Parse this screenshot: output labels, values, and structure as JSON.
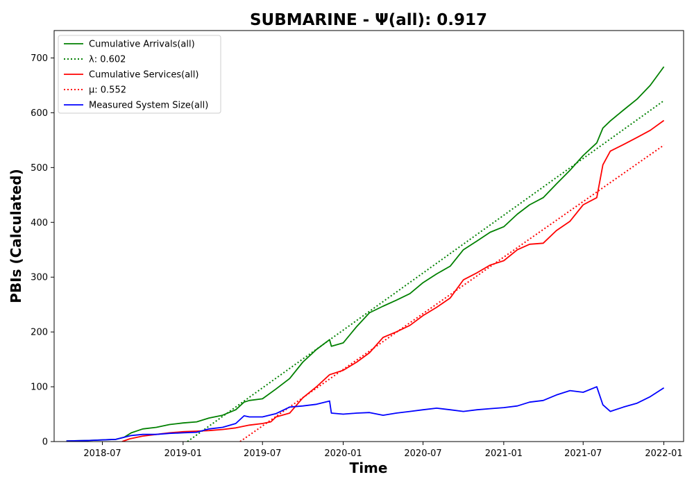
{
  "chart_data": {
    "type": "line",
    "title": "SUBMARINE -  Ψ(all): 0.917",
    "xlabel": "Time",
    "ylabel": "PBIs (Calculated)",
    "xlim": [
      "2018-03-13",
      "2022-02-15"
    ],
    "ylim": [
      0,
      750
    ],
    "x_ticks": [
      "2018-07-01",
      "2019-01-01",
      "2019-07-01",
      "2020-01-01",
      "2020-07-01",
      "2021-01-01",
      "2021-07-01",
      "2022-01-01"
    ],
    "x_tick_labels": [
      "2018-07",
      "2019-01",
      "2019-07",
      "2020-01",
      "2020-07",
      "2021-01",
      "2021-07",
      "2022-01"
    ],
    "y_ticks": [
      0,
      100,
      200,
      300,
      400,
      500,
      600,
      700
    ],
    "grid": false,
    "legend_position": "upper-left",
    "series": [
      {
        "name": "Cumulative Arrivals(all)",
        "color": "#008000",
        "style": "solid",
        "points": [
          [
            "2018-04-10",
            1
          ],
          [
            "2018-06-01",
            2
          ],
          [
            "2018-08-01",
            4
          ],
          [
            "2018-08-20",
            8
          ],
          [
            "2018-09-05",
            16
          ],
          [
            "2018-10-01",
            23
          ],
          [
            "2018-11-01",
            26
          ],
          [
            "2018-12-01",
            31
          ],
          [
            "2019-01-01",
            34
          ],
          [
            "2019-02-01",
            36
          ],
          [
            "2019-03-01",
            43
          ],
          [
            "2019-04-01",
            48
          ],
          [
            "2019-05-01",
            58
          ],
          [
            "2019-05-20",
            72
          ],
          [
            "2019-06-01",
            75
          ],
          [
            "2019-07-01",
            78
          ],
          [
            "2019-08-01",
            96
          ],
          [
            "2019-09-01",
            115
          ],
          [
            "2019-10-01",
            145
          ],
          [
            "2019-11-01",
            168
          ],
          [
            "2019-12-01",
            186
          ],
          [
            "2019-12-05",
            174
          ],
          [
            "2020-01-01",
            180
          ],
          [
            "2020-02-01",
            210
          ],
          [
            "2020-03-01",
            235
          ],
          [
            "2020-04-01",
            247
          ],
          [
            "2020-05-01",
            258
          ],
          [
            "2020-06-01",
            270
          ],
          [
            "2020-07-01",
            290
          ],
          [
            "2020-08-01",
            306
          ],
          [
            "2020-09-01",
            320
          ],
          [
            "2020-10-01",
            350
          ],
          [
            "2020-11-01",
            366
          ],
          [
            "2020-12-01",
            382
          ],
          [
            "2021-01-01",
            392
          ],
          [
            "2021-02-01",
            415
          ],
          [
            "2021-03-01",
            432
          ],
          [
            "2021-04-01",
            445
          ],
          [
            "2021-05-01",
            470
          ],
          [
            "2021-06-01",
            495
          ],
          [
            "2021-07-01",
            522
          ],
          [
            "2021-08-01",
            545
          ],
          [
            "2021-08-15",
            572
          ],
          [
            "2021-09-01",
            585
          ],
          [
            "2021-10-01",
            605
          ],
          [
            "2021-11-01",
            625
          ],
          [
            "2021-12-01",
            650
          ],
          [
            "2022-01-01",
            684
          ]
        ]
      },
      {
        "name": "λ: 0.602",
        "color": "#008000",
        "style": "dotted",
        "points": [
          [
            "2019-01-11",
            0
          ],
          [
            "2022-01-01",
            622
          ]
        ]
      },
      {
        "name": "Cumulative Services(all)",
        "color": "#ff0000",
        "style": "solid",
        "points": [
          [
            "2018-08-15",
            0
          ],
          [
            "2018-09-01",
            5
          ],
          [
            "2018-10-01",
            10
          ],
          [
            "2018-11-01",
            13
          ],
          [
            "2018-12-01",
            16
          ],
          [
            "2019-01-01",
            18
          ],
          [
            "2019-02-01",
            19
          ],
          [
            "2019-03-01",
            20
          ],
          [
            "2019-04-01",
            22
          ],
          [
            "2019-05-01",
            25
          ],
          [
            "2019-06-01",
            30
          ],
          [
            "2019-07-01",
            33
          ],
          [
            "2019-07-20",
            36
          ],
          [
            "2019-08-01",
            45
          ],
          [
            "2019-09-01",
            52
          ],
          [
            "2019-10-01",
            80
          ],
          [
            "2019-11-01",
            100
          ],
          [
            "2019-12-01",
            122
          ],
          [
            "2020-01-01",
            130
          ],
          [
            "2020-02-01",
            145
          ],
          [
            "2020-03-01",
            162
          ],
          [
            "2020-04-01",
            190
          ],
          [
            "2020-05-01",
            200
          ],
          [
            "2020-06-01",
            212
          ],
          [
            "2020-07-01",
            230
          ],
          [
            "2020-08-01",
            245
          ],
          [
            "2020-09-01",
            262
          ],
          [
            "2020-10-01",
            295
          ],
          [
            "2020-11-01",
            308
          ],
          [
            "2020-12-01",
            322
          ],
          [
            "2021-01-01",
            330
          ],
          [
            "2021-02-01",
            350
          ],
          [
            "2021-03-01",
            360
          ],
          [
            "2021-04-01",
            362
          ],
          [
            "2021-05-01",
            385
          ],
          [
            "2021-06-01",
            402
          ],
          [
            "2021-07-01",
            432
          ],
          [
            "2021-08-01",
            445
          ],
          [
            "2021-08-15",
            505
          ],
          [
            "2021-09-01",
            530
          ],
          [
            "2021-10-01",
            542
          ],
          [
            "2021-11-01",
            555
          ],
          [
            "2021-12-01",
            568
          ],
          [
            "2022-01-01",
            586
          ]
        ]
      },
      {
        "name": "μ: 0.552",
        "color": "#ff0000",
        "style": "dotted",
        "points": [
          [
            "2019-05-11",
            0
          ],
          [
            "2022-01-01",
            541
          ]
        ]
      },
      {
        "name": "Measured System Size(all)",
        "color": "#0000ff",
        "style": "solid",
        "points": [
          [
            "2018-04-10",
            1
          ],
          [
            "2018-06-01",
            2
          ],
          [
            "2018-08-01",
            4
          ],
          [
            "2018-08-20",
            8
          ],
          [
            "2018-09-05",
            11
          ],
          [
            "2018-10-01",
            13
          ],
          [
            "2018-11-01",
            13
          ],
          [
            "2018-12-01",
            15
          ],
          [
            "2019-01-01",
            16
          ],
          [
            "2019-02-01",
            17
          ],
          [
            "2019-03-01",
            23
          ],
          [
            "2019-04-01",
            26
          ],
          [
            "2019-05-01",
            33
          ],
          [
            "2019-05-20",
            47
          ],
          [
            "2019-06-01",
            45
          ],
          [
            "2019-07-01",
            45
          ],
          [
            "2019-08-01",
            51
          ],
          [
            "2019-09-01",
            63
          ],
          [
            "2019-10-01",
            65
          ],
          [
            "2019-11-01",
            68
          ],
          [
            "2019-12-01",
            74
          ],
          [
            "2019-12-05",
            52
          ],
          [
            "2020-01-01",
            50
          ],
          [
            "2020-02-01",
            52
          ],
          [
            "2020-03-01",
            53
          ],
          [
            "2020-04-01",
            48
          ],
          [
            "2020-05-01",
            52
          ],
          [
            "2020-06-01",
            55
          ],
          [
            "2020-07-01",
            58
          ],
          [
            "2020-08-01",
            61
          ],
          [
            "2020-09-01",
            58
          ],
          [
            "2020-10-01",
            55
          ],
          [
            "2020-11-01",
            58
          ],
          [
            "2020-12-01",
            60
          ],
          [
            "2021-01-01",
            62
          ],
          [
            "2021-02-01",
            65
          ],
          [
            "2021-03-01",
            72
          ],
          [
            "2021-04-01",
            75
          ],
          [
            "2021-05-01",
            85
          ],
          [
            "2021-06-01",
            93
          ],
          [
            "2021-07-01",
            90
          ],
          [
            "2021-08-01",
            100
          ],
          [
            "2021-08-15",
            67
          ],
          [
            "2021-09-01",
            55
          ],
          [
            "2021-10-01",
            63
          ],
          [
            "2021-11-01",
            70
          ],
          [
            "2021-12-01",
            82
          ],
          [
            "2022-01-01",
            98
          ]
        ]
      }
    ]
  }
}
